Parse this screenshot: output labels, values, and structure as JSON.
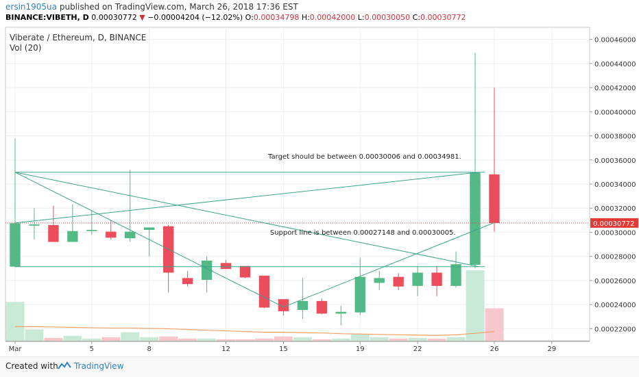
{
  "header": {
    "author": "ersin1905ua",
    "published_text": "published on TradingView.com, March 26, 2018 17:36 EST",
    "symbol": "BINANCE:VIBETH, D",
    "last_price": "0.00030772",
    "change_arrow": "▼",
    "change": "−0.00004204 (−12.02%)",
    "o_label": "O:",
    "o_value": "0.00034798",
    "h_label": "H:",
    "h_value": "0.00042000",
    "l_label": "L:",
    "l_value": "0.00030050",
    "c_label": "C:",
    "c_value": "0.00030772"
  },
  "chart_data": {
    "type": "candlestick",
    "title": "Viberate / Ethereum, D, BINANCE",
    "volume_label": "Vol (20)",
    "ylim": [
      0.00021,
      0.00047
    ],
    "y_ticks": [
      "0.00022000",
      "0.00024000",
      "0.00026000",
      "0.00028000",
      "0.00030000",
      "0.00032000",
      "0.00034000",
      "0.00036000",
      "0.00038000",
      "0.00040000",
      "0.00042000",
      "0.00044000",
      "0.00046000"
    ],
    "x_ticks": [
      {
        "label": "Mar",
        "day": 1
      },
      {
        "label": "5",
        "day": 5
      },
      {
        "label": "8",
        "day": 8
      },
      {
        "label": "12",
        "day": 12
      },
      {
        "label": "15",
        "day": 15
      },
      {
        "label": "19",
        "day": 19
      },
      {
        "label": "22",
        "day": 22
      },
      {
        "label": "26",
        "day": 26
      },
      {
        "label": "29",
        "day": 29
      }
    ],
    "last_price_label": "0.00030772",
    "last_price": 0.00030772,
    "candles": [
      {
        "day": 1,
        "o": 0.0002715,
        "h": 0.000378,
        "l": 0.000271,
        "c": 0.0003075,
        "v": 0.55
      },
      {
        "day": 2,
        "o": 0.0003055,
        "h": 0.00032,
        "l": 0.000294,
        "c": 0.0003065,
        "v": 0.16
      },
      {
        "day": 3,
        "o": 0.000306,
        "h": 0.000322,
        "l": 0.000292,
        "c": 0.000292,
        "v": 0.04
      },
      {
        "day": 4,
        "o": 0.000292,
        "h": 0.000323,
        "l": 0.000292,
        "c": 0.000301,
        "v": 0.07
      },
      {
        "day": 5,
        "o": 0.000301,
        "h": 0.000318,
        "l": 0.000298,
        "c": 0.000302,
        "v": 0.03
      },
      {
        "day": 6,
        "o": 0.0003005,
        "h": 0.00031,
        "l": 0.000294,
        "c": 0.0002955,
        "v": 0.05
      },
      {
        "day": 7,
        "o": 0.000295,
        "h": 0.000352,
        "l": 0.000292,
        "c": 0.0003005,
        "v": 0.12
      },
      {
        "day": 8,
        "o": 0.000302,
        "h": 0.000304,
        "l": 0.00028,
        "c": 0.000304,
        "v": 0.05
      },
      {
        "day": 9,
        "o": 0.000305,
        "h": 0.000306,
        "l": 0.00025,
        "c": 0.0002665,
        "v": 0.06
      },
      {
        "day": 10,
        "o": 0.000262,
        "h": 0.000268,
        "l": 0.000255,
        "c": 0.000257,
        "v": 0.03
      },
      {
        "day": 11,
        "o": 0.0002605,
        "h": 0.00028,
        "l": 0.00025,
        "c": 0.0002765,
        "v": 0.03
      },
      {
        "day": 12,
        "o": 0.0002745,
        "h": 0.000277,
        "l": 0.00027,
        "c": 0.0002695,
        "v": 0.02
      },
      {
        "day": 13,
        "o": 0.000272,
        "h": 0.000272,
        "l": 0.000262,
        "c": 0.0002625,
        "v": 0.02
      },
      {
        "day": 14,
        "o": 0.000264,
        "h": 0.000264,
        "l": 0.000237,
        "c": 0.0002375,
        "v": 0.03
      },
      {
        "day": 15,
        "o": 0.0002445,
        "h": 0.000244,
        "l": 0.000231,
        "c": 0.0002345,
        "v": 0.06
      },
      {
        "day": 16,
        "o": 0.0002355,
        "h": 0.000262,
        "l": 0.000228,
        "c": 0.000243,
        "v": 0.05
      },
      {
        "day": 17,
        "o": 0.000243,
        "h": 0.000245,
        "l": 0.000232,
        "c": 0.0002325,
        "v": 0.02
      },
      {
        "day": 18,
        "o": 0.0002325,
        "h": 0.000239,
        "l": 0.000223,
        "c": 0.000234,
        "v": 0.03
      },
      {
        "day": 19,
        "o": 0.0002335,
        "h": 0.000279,
        "l": 0.000231,
        "c": 0.000263,
        "v": 0.09
      },
      {
        "day": 20,
        "o": 0.000258,
        "h": 0.000268,
        "l": 0.000252,
        "c": 0.000262,
        "v": 0.05
      },
      {
        "day": 21,
        "o": 0.000263,
        "h": 0.000266,
        "l": 0.000252,
        "c": 0.000255,
        "v": 0.03
      },
      {
        "day": 22,
        "o": 0.0002555,
        "h": 0.000272,
        "l": 0.000247,
        "c": 0.0002665,
        "v": 0.04
      },
      {
        "day": 23,
        "o": 0.0002665,
        "h": 0.000272,
        "l": 0.000247,
        "c": 0.0002555,
        "v": 0.03
      },
      {
        "day": 24,
        "o": 0.0002555,
        "h": 0.000284,
        "l": 0.000254,
        "c": 0.0002735,
        "v": 0.05
      },
      {
        "day": 25,
        "o": 0.000273,
        "h": 0.000449,
        "l": 0.00027,
        "c": 0.0003495,
        "v": 1.0
      },
      {
        "day": 26,
        "o": 0.000348,
        "h": 0.00042,
        "l": 0.0003005,
        "c": 0.0003077,
        "v": 0.46
      }
    ],
    "volume_ma": [
      0.2,
      0.2,
      0.195,
      0.19,
      0.185,
      0.18,
      0.18,
      0.175,
      0.17,
      0.16,
      0.15,
      0.14,
      0.13,
      0.12,
      0.12,
      0.115,
      0.11,
      0.1,
      0.095,
      0.09,
      0.085,
      0.08,
      0.075,
      0.085,
      0.105,
      0.13
    ],
    "annotations": [
      {
        "text": "Target should be between 0.00030006 and 0.00034981.",
        "day": 14.2,
        "y": 0.000361
      },
      {
        "text": "Support line is between 0.00027148 and 0.00030005.",
        "day": 14.3,
        "y": 0.000298
      }
    ],
    "lines": [
      {
        "from": [
          1,
          0.00034981
        ],
        "to": [
          25.5,
          0.00034981
        ]
      },
      {
        "from": [
          1,
          0.00027148
        ],
        "to": [
          25.5,
          0.00027148
        ]
      },
      {
        "from": [
          1,
          0.00034981
        ],
        "to": [
          25.2,
          0.00027148
        ]
      },
      {
        "from": [
          1,
          0.00030772
        ],
        "to": [
          25.2,
          0.00034981
        ]
      },
      {
        "from": [
          1,
          0.00034981
        ],
        "to": [
          15,
          0.000238
        ]
      },
      {
        "from": [
          15,
          0.000238
        ],
        "to": [
          26,
          0.000308
        ]
      }
    ],
    "colors": {
      "up": "#53b987",
      "down": "#eb4d5c",
      "up_vol": "#c8e9d8",
      "down_vol": "#f6c8cd",
      "trend": "#3aa58c",
      "ma": "#f3a36a"
    }
  },
  "footer": {
    "created_with": "Created with",
    "brand": "TradingView"
  }
}
